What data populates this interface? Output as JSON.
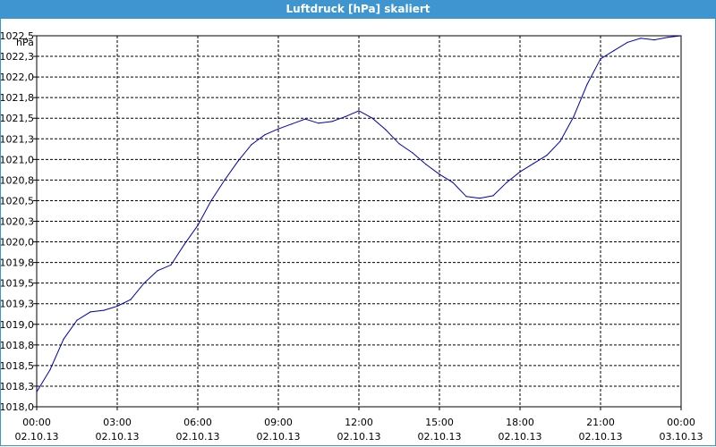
{
  "window": {
    "title": "Luftdruck [hPa] skaliert"
  },
  "chart_data": {
    "type": "line",
    "title": "Luftdruck [hPa] skaliert",
    "ylabel": "hPa",
    "ylim": [
      1018.0,
      1022.5
    ],
    "yticks": [
      "1018,0",
      "1018,3",
      "1018,5",
      "1018,8",
      "1019,0",
      "1019,3",
      "1019,5",
      "1019,8",
      "1020,0",
      "1020,3",
      "1020,5",
      "1020,8",
      "1021,0",
      "1021,3",
      "1021,5",
      "1021,8",
      "1022,0",
      "1022,3",
      "1022,5"
    ],
    "xticks": [
      {
        "time": "00:00",
        "date": "02.10.13"
      },
      {
        "time": "03:00",
        "date": "02.10.13"
      },
      {
        "time": "06:00",
        "date": "02.10.13"
      },
      {
        "time": "09:00",
        "date": "02.10.13"
      },
      {
        "time": "12:00",
        "date": "02.10.13"
      },
      {
        "time": "15:00",
        "date": "02.10.13"
      },
      {
        "time": "18:00",
        "date": "02.10.13"
      },
      {
        "time": "21:00",
        "date": "02.10.13"
      },
      {
        "time": "00:00",
        "date": "03.10.13"
      }
    ],
    "grid": true,
    "line_color": "#0000b4",
    "series": [
      {
        "x": [
          "00:00",
          "00:30",
          "01:00",
          "01:30",
          "02:00",
          "02:30",
          "03:00",
          "03:30",
          "04:00",
          "04:30",
          "05:00",
          "05:30",
          "06:00",
          "06:30",
          "07:00",
          "07:30",
          "08:00",
          "08:30",
          "09:00",
          "09:30",
          "10:00",
          "10:30",
          "11:00",
          "11:30",
          "12:00",
          "12:30",
          "13:00",
          "13:30",
          "14:00",
          "14:30",
          "15:00",
          "15:30",
          "16:00",
          "16:30",
          "17:00",
          "17:30",
          "18:00",
          "18:30",
          "19:00",
          "19:30",
          "20:00",
          "20:30",
          "21:00",
          "21:30",
          "22:00",
          "22:30",
          "23:00",
          "23:30",
          "24:00"
        ],
        "values": [
          1018.18,
          1018.45,
          1018.82,
          1019.05,
          1019.15,
          1019.17,
          1019.22,
          1019.3,
          1019.5,
          1019.65,
          1019.72,
          1019.97,
          1020.2,
          1020.5,
          1020.75,
          1020.98,
          1021.18,
          1021.3,
          1021.37,
          1021.43,
          1021.49,
          1021.44,
          1021.46,
          1021.52,
          1021.59,
          1021.5,
          1021.36,
          1021.19,
          1021.08,
          1020.94,
          1020.82,
          1020.72,
          1020.55,
          1020.53,
          1020.56,
          1020.72,
          1020.85,
          1020.95,
          1021.05,
          1021.22,
          1021.52,
          1021.91,
          1022.22,
          1022.32,
          1022.42,
          1022.47,
          1022.45,
          1022.48,
          1022.5
        ]
      }
    ]
  }
}
